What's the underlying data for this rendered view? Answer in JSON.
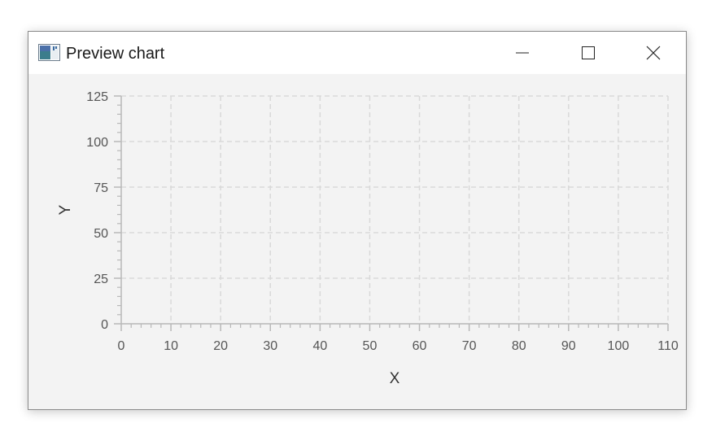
{
  "window": {
    "title": "Preview chart",
    "app_icon": "chart-app-icon",
    "controls": {
      "minimize_icon": "minimize-icon",
      "maximize_icon": "maximize-icon",
      "close_icon": "close-icon"
    }
  },
  "chart_data": {
    "type": "line",
    "title": "",
    "xlabel": "X",
    "ylabel": "Y",
    "xlim": [
      0,
      110
    ],
    "ylim": [
      0,
      125
    ],
    "x_major_ticks": [
      0,
      10,
      20,
      30,
      40,
      50,
      60,
      70,
      80,
      90,
      100,
      110
    ],
    "y_major_ticks": [
      0,
      25,
      50,
      75,
      100,
      125
    ],
    "x_minor_step": 2,
    "y_minor_step": 5,
    "grid": true,
    "grid_style": "dashed",
    "series": []
  }
}
